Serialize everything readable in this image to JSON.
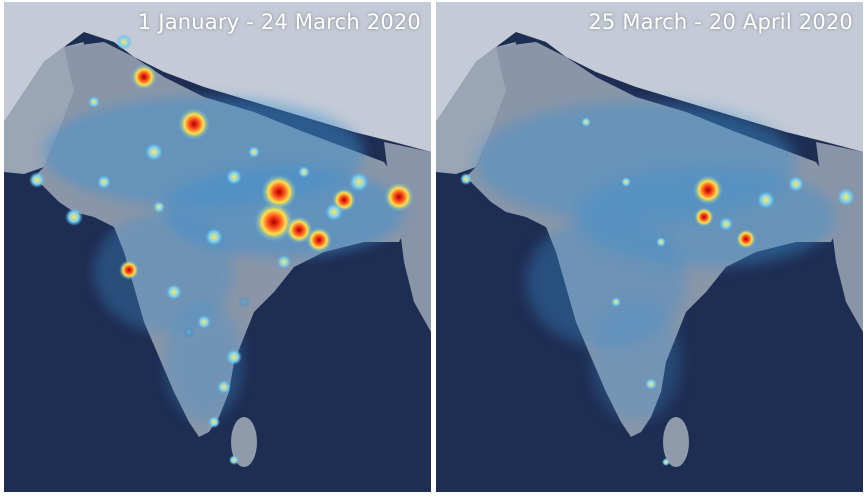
{
  "panels": [
    {
      "id": "before",
      "caption": "1 January - 24 March 2020"
    },
    {
      "id": "after",
      "caption": "25 March - 20 April 2020"
    }
  ],
  "colors": {
    "ocean": "#1e2d52",
    "land": "#8a96a8",
    "mountains": "#c4cad6",
    "low": "#4fb3ea",
    "mid": "#ffe14a",
    "high": "#ff5a1e",
    "peak": "#a80000"
  }
}
